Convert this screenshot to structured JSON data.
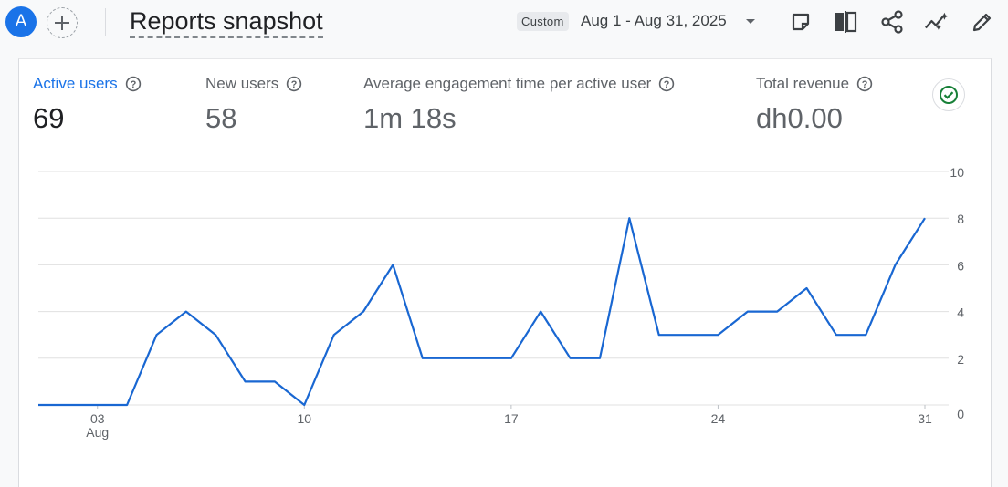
{
  "header": {
    "avatar_letter": "A",
    "title": "Reports snapshot",
    "custom_label": "Custom",
    "date_range": "Aug 1 - Aug 31, 2025",
    "tools": [
      "note-icon",
      "compare-icon",
      "share-icon",
      "insights-icon",
      "edit-icon"
    ]
  },
  "metrics": [
    {
      "label": "Active users",
      "value": "69"
    },
    {
      "label": "New users",
      "value": "58"
    },
    {
      "label": "Average engagement time per active user",
      "value": "1m 18s"
    },
    {
      "label": "Total revenue",
      "value": "dh0.00"
    }
  ],
  "colors": {
    "accent": "#1a73e8",
    "success": "#188038"
  },
  "chart_data": {
    "type": "line",
    "series": [
      {
        "values": [
          0,
          0,
          0,
          0,
          3,
          4,
          3,
          1,
          1,
          0,
          3,
          4,
          6,
          2,
          2,
          2,
          2,
          4,
          2,
          2,
          8,
          3,
          3,
          3,
          4,
          4,
          5,
          3,
          3,
          6,
          8
        ]
      }
    ],
    "x": [
      1,
      2,
      3,
      4,
      5,
      6,
      7,
      8,
      9,
      10,
      11,
      12,
      13,
      14,
      15,
      16,
      17,
      18,
      19,
      20,
      21,
      22,
      23,
      24,
      25,
      26,
      27,
      28,
      29,
      30,
      31
    ],
    "x_ticks": [
      {
        "day": 3,
        "label": "03",
        "sublabel": "Aug"
      },
      {
        "day": 10,
        "label": "10",
        "sublabel": ""
      },
      {
        "day": 17,
        "label": "17",
        "sublabel": ""
      },
      {
        "day": 24,
        "label": "24",
        "sublabel": ""
      },
      {
        "day": 31,
        "label": "31",
        "sublabel": ""
      }
    ],
    "y_ticks": [
      "0",
      "2",
      "4",
      "6",
      "8",
      "10"
    ],
    "ylim": [
      0,
      10
    ],
    "grid": true,
    "line_color": "#1967d2"
  }
}
